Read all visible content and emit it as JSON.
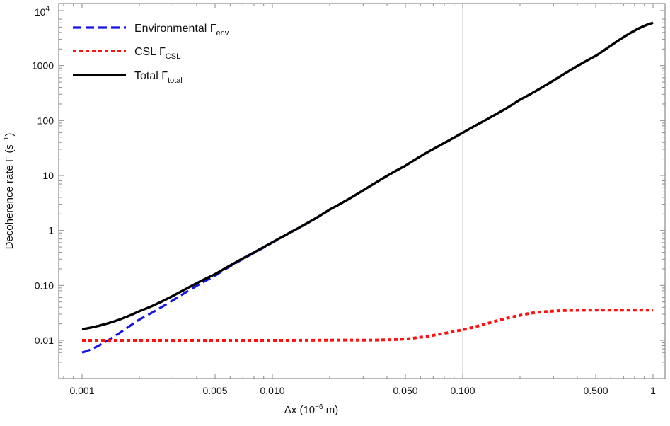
{
  "chart_data": {
    "type": "line",
    "title": "",
    "xlabel": "Δx  (10⁻⁶ m)",
    "xlabel_parts": {
      "main": "Δx  (10",
      "sup": "−6",
      "tail": " m)"
    },
    "ylabel": "Decoherence rate  Γ  (s⁻¹)",
    "ylabel_parts": {
      "main": "Decoherence rate  Γ  (",
      "italic": "s",
      "sup": "−1",
      "tail": ")"
    },
    "x_scale": "log",
    "y_scale": "log",
    "xlim": [
      0.00075,
      1.07
    ],
    "ylim": [
      0.0037,
      13500
    ],
    "x_ticks": [
      {
        "value": 0.001,
        "label": "0.001"
      },
      {
        "value": 0.005,
        "label": "0.005"
      },
      {
        "value": 0.01,
        "label": "0.010"
      },
      {
        "value": 0.05,
        "label": "0.050"
      },
      {
        "value": 0.1,
        "label": "0.100"
      },
      {
        "value": 0.5,
        "label": "0.500"
      },
      {
        "value": 1,
        "label": "1"
      }
    ],
    "y_ticks": [
      {
        "value": 0.01,
        "label": "0.01"
      },
      {
        "value": 0.1,
        "label": "0.10"
      },
      {
        "value": 1,
        "label": "1"
      },
      {
        "value": 10,
        "label": "10"
      },
      {
        "value": 100,
        "label": "100"
      },
      {
        "value": 1000,
        "label": "1000"
      },
      {
        "value": 10000,
        "label": "10",
        "sup": "4"
      }
    ],
    "vertical_gridline_x": 0.1,
    "grid": false,
    "legend_position": "upper-left",
    "series": [
      {
        "name": "Environmental Γenv",
        "label_main": "Environmental  Γ",
        "label_sub": "env",
        "color": "#1515e6",
        "style": "dashed",
        "x": [
          0.001,
          0.002,
          0.005,
          0.01,
          0.02,
          0.05,
          0.1,
          0.2,
          0.5,
          1
        ],
        "values": [
          0.006,
          0.024,
          0.15,
          0.6,
          2.4,
          15,
          60,
          240,
          1500,
          6000
        ]
      },
      {
        "name": "CSL ΓCSL",
        "label_main": "CSL  Γ",
        "label_sub": "CSL",
        "color": "#ff1010",
        "style": "dotted",
        "x": [
          0.001,
          0.002,
          0.005,
          0.01,
          0.02,
          0.05,
          0.1,
          0.2,
          0.3,
          0.5,
          1
        ],
        "values": [
          0.01,
          0.01,
          0.01,
          0.01,
          0.0101,
          0.0106,
          0.0156,
          0.0284,
          0.0342,
          0.0355,
          0.0355
        ]
      },
      {
        "name": "Total Γtotal",
        "label_main": "Total  Γ",
        "label_sub": "total",
        "color": "#000000",
        "style": "solid",
        "x": [
          0.001,
          0.002,
          0.005,
          0.01,
          0.02,
          0.05,
          0.1,
          0.2,
          0.5,
          1
        ],
        "values": [
          0.016,
          0.034,
          0.16,
          0.61,
          2.41,
          15.01,
          60.02,
          240.03,
          1500.04,
          6000.04
        ]
      }
    ]
  }
}
